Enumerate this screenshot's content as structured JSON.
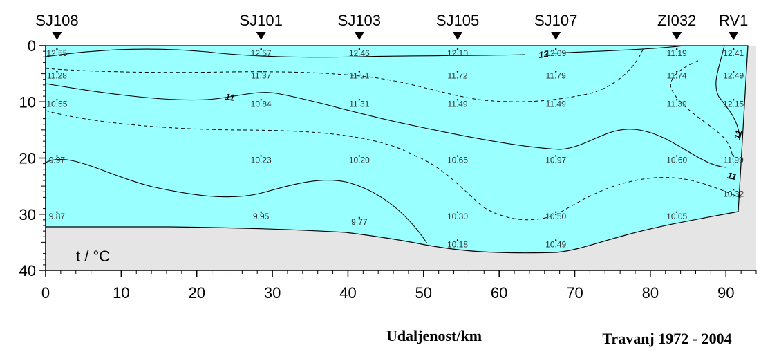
{
  "chart_data": {
    "type": "contour",
    "xlabel": "Udaljenost/km",
    "ylabel": "",
    "period": "Travanj  1972 - 2004",
    "variable_label": "t / °C",
    "xlim": [
      0,
      94
    ],
    "ylim": [
      0,
      40
    ],
    "y_inverted": true,
    "x_ticks": [
      "0",
      "10",
      "20",
      "30",
      "40",
      "50",
      "60",
      "70",
      "80",
      "90"
    ],
    "y_ticks": [
      "0",
      "10",
      "20",
      "30",
      "40"
    ],
    "stations": [
      {
        "name": "SJ108",
        "x": 1.5
      },
      {
        "name": "SJ101",
        "x": 28.5
      },
      {
        "name": "SJ103",
        "x": 41.5
      },
      {
        "name": "SJ105",
        "x": 54.5
      },
      {
        "name": "SJ107",
        "x": 67.5
      },
      {
        "name": "ZI032",
        "x": 83.5
      },
      {
        "name": "RV1",
        "x": 91
      }
    ],
    "measurements": [
      {
        "x": 1.5,
        "y": 1,
        "label": "12.55"
      },
      {
        "x": 1.5,
        "y": 5,
        "label": "11.28"
      },
      {
        "x": 1.5,
        "y": 10,
        "label": "10.55"
      },
      {
        "x": 1.5,
        "y": 20,
        "label": "9.97"
      },
      {
        "x": 1.5,
        "y": 30,
        "label": "9.87"
      },
      {
        "x": 28.5,
        "y": 1,
        "label": "12.57"
      },
      {
        "x": 28.5,
        "y": 5,
        "label": "11.37"
      },
      {
        "x": 28.5,
        "y": 10,
        "label": "10.84"
      },
      {
        "x": 28.5,
        "y": 20,
        "label": "10.23"
      },
      {
        "x": 28.5,
        "y": 30,
        "label": "9.95"
      },
      {
        "x": 41.5,
        "y": 1,
        "label": "12.46"
      },
      {
        "x": 41.5,
        "y": 5,
        "label": "11.51"
      },
      {
        "x": 41.5,
        "y": 10,
        "label": "11.31"
      },
      {
        "x": 41.5,
        "y": 20,
        "label": "10.20"
      },
      {
        "x": 41.5,
        "y": 31,
        "label": "9.77"
      },
      {
        "x": 54.5,
        "y": 1,
        "label": "12.10"
      },
      {
        "x": 54.5,
        "y": 5,
        "label": "11.72"
      },
      {
        "x": 54.5,
        "y": 10,
        "label": "11.49"
      },
      {
        "x": 54.5,
        "y": 20,
        "label": "10.65"
      },
      {
        "x": 54.5,
        "y": 30,
        "label": "10.30"
      },
      {
        "x": 54.5,
        "y": 35,
        "label": "10.18"
      },
      {
        "x": 67.5,
        "y": 1,
        "label": "12.09"
      },
      {
        "x": 67.5,
        "y": 5,
        "label": "11.79"
      },
      {
        "x": 67.5,
        "y": 10,
        "label": "11.49"
      },
      {
        "x": 67.5,
        "y": 20,
        "label": "10.97"
      },
      {
        "x": 67.5,
        "y": 30,
        "label": "10.50"
      },
      {
        "x": 67.5,
        "y": 35,
        "label": "10.49"
      },
      {
        "x": 83.5,
        "y": 1,
        "label": "11.19"
      },
      {
        "x": 83.5,
        "y": 5,
        "label": "11.74"
      },
      {
        "x": 83.5,
        "y": 10,
        "label": "11.39"
      },
      {
        "x": 83.5,
        "y": 20,
        "label": "10.60"
      },
      {
        "x": 83.5,
        "y": 30,
        "label": "10.05"
      },
      {
        "x": 91,
        "y": 1,
        "label": "12.41"
      },
      {
        "x": 91,
        "y": 5,
        "label": "12.49"
      },
      {
        "x": 91,
        "y": 10,
        "label": "12.15"
      },
      {
        "x": 91,
        "y": 20,
        "label": "11.99"
      },
      {
        "x": 91,
        "y": 26,
        "label": "10.32"
      }
    ],
    "contour_labels": [
      "12",
      "11",
      "11",
      "11"
    ],
    "colors": {
      "water": "#99ffff",
      "seabed": "#e5e5e5",
      "line": "#000000"
    }
  }
}
